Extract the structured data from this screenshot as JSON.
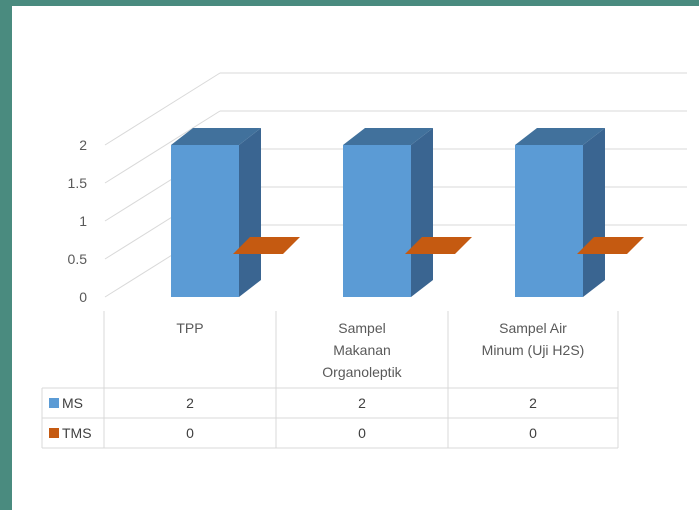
{
  "colors": {
    "frame_bg": "#4a8b7f",
    "plot_bg": "#ffffff",
    "grid": "#d9d9d9",
    "ms_front": "#5b9bd5",
    "ms_top": "#41719c",
    "ms_side": "#3a6591",
    "tms": "#c55a11"
  },
  "chart_data": {
    "type": "bar",
    "style": "3d-column with data table",
    "categories": [
      [
        "TPP"
      ],
      [
        "Sampel",
        "Makanan",
        "Organoleptik"
      ],
      [
        "Sampel Air",
        "Minum (Uji H2S)"
      ]
    ],
    "series": [
      {
        "name": "MS",
        "values": [
          2,
          2,
          2
        ],
        "color": "#5b9bd5"
      },
      {
        "name": "TMS",
        "values": [
          0,
          0,
          0
        ],
        "color": "#c55a11"
      }
    ],
    "yticks": [
      "0",
      "0.5",
      "1",
      "1.5",
      "2"
    ],
    "ylim": [
      0,
      2
    ],
    "title": "",
    "xlabel": "",
    "ylabel": "",
    "table_values": [
      [
        "2",
        "2",
        "2"
      ],
      [
        "0",
        "0",
        "0"
      ]
    ]
  }
}
